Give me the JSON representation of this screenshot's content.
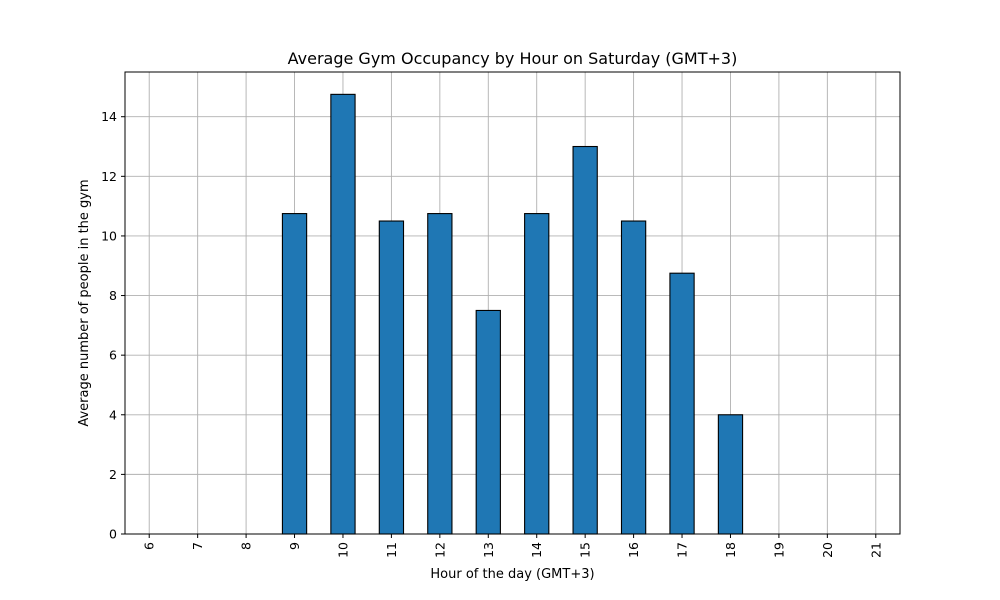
{
  "chart_data": {
    "type": "bar",
    "title": "Average Gym Occupancy by Hour on Saturday (GMT+3)",
    "xlabel": "Hour of the day (GMT+3)",
    "ylabel": "Average number of people in the gym",
    "categories": [
      "6",
      "7",
      "8",
      "9",
      "10",
      "11",
      "12",
      "13",
      "14",
      "15",
      "16",
      "17",
      "18",
      "19",
      "20",
      "21"
    ],
    "values": [
      0,
      0,
      0,
      10.75,
      14.75,
      10.5,
      10.75,
      7.5,
      10.75,
      13,
      10.5,
      8.75,
      4,
      0,
      0,
      0
    ],
    "ylim": [
      0,
      15.5
    ],
    "yticks": [
      0,
      2,
      4,
      6,
      8,
      10,
      12,
      14
    ],
    "grid": true,
    "bar_color": "#1f77b4",
    "edge_color": "#000000"
  }
}
